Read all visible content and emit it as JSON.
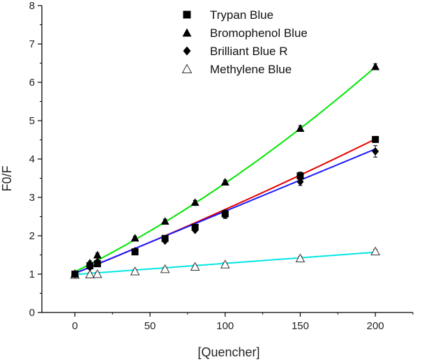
{
  "chart_data": {
    "type": "scatter",
    "title": "",
    "xlabel": "[Quencher]",
    "ylabel": "F0/F",
    "xlim": [
      -22,
      225
    ],
    "ylim": [
      0,
      8
    ],
    "xticks": [
      0,
      50,
      100,
      150,
      200
    ],
    "yticks": [
      0,
      1,
      2,
      3,
      4,
      5,
      6,
      7,
      8
    ],
    "grid": false,
    "legend_position": "top-center",
    "x": [
      0,
      10,
      15,
      40,
      60,
      80,
      100,
      150,
      200
    ],
    "series": [
      {
        "name": "Trypan Blue",
        "marker": "filled-square",
        "fit_color": "#e60000",
        "fit": [
          1.02,
          0.0158,
          8.5e-06
        ],
        "values": [
          1.0,
          1.22,
          1.27,
          1.58,
          1.93,
          2.22,
          2.57,
          3.56,
          4.51
        ],
        "errors": [
          0.03,
          0.05,
          0.05,
          0.05,
          0.05,
          0.05,
          0.1,
          0.1,
          0.05
        ]
      },
      {
        "name": "Bromophenol Blue",
        "marker": "filled-triangle",
        "fit_color": "#00e600",
        "fit": [
          1.06,
          0.0195,
          3.6e-05
        ],
        "values": [
          1.02,
          1.29,
          1.5,
          1.94,
          2.38,
          2.87,
          3.4,
          4.8,
          6.41
        ],
        "errors": [
          0.03,
          0.05,
          0.05,
          0.05,
          0.05,
          0.05,
          0.05,
          0.07,
          0.07
        ]
      },
      {
        "name": "Brilliant Blue R",
        "marker": "filled-diamond",
        "fit_color": "#1a1aff",
        "fit": [
          1.02,
          0.0162
        ],
        "values": [
          1.0,
          1.18,
          1.32,
          1.6,
          1.87,
          2.15,
          2.55,
          3.41,
          4.2
        ],
        "errors": [
          0.03,
          0.05,
          0.05,
          0.05,
          0.05,
          0.05,
          0.1,
          0.1,
          0.15
        ]
      },
      {
        "name": "Methylene Blue",
        "marker": "open-triangle",
        "fit_color": "#00e6e6",
        "fit": [
          0.99,
          0.0029
        ],
        "values": [
          0.98,
          0.99,
          1.0,
          1.07,
          1.13,
          1.19,
          1.25,
          1.41,
          1.59
        ],
        "errors": [
          0.03,
          0.05,
          0.05,
          0.05,
          0.05,
          0.05,
          0.05,
          0.05,
          0.05
        ]
      }
    ]
  }
}
